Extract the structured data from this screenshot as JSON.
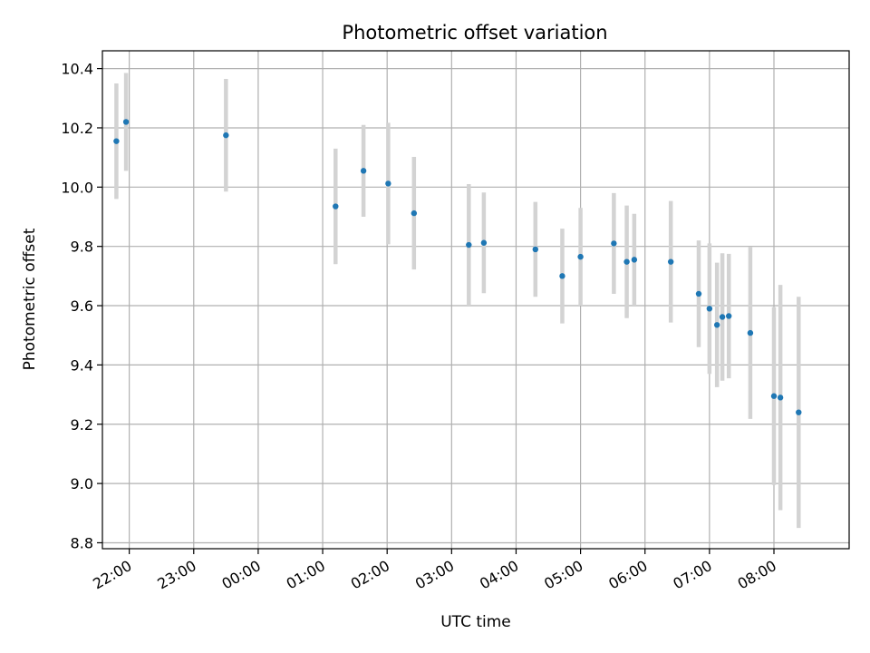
{
  "chart_data": {
    "type": "scatter",
    "title": "Photometric offset variation",
    "xlabel": "UTC time",
    "ylabel": "Photometric offset",
    "x_is_time": true,
    "xlim": [
      "21:35",
      "09:10"
    ],
    "ylim": [
      8.78,
      10.46
    ],
    "grid": true,
    "x_ticks": [
      "22:00",
      "23:00",
      "00:00",
      "01:00",
      "02:00",
      "03:00",
      "04:00",
      "05:00",
      "06:00",
      "07:00",
      "08:00"
    ],
    "y_ticks": [
      "8.8",
      "9.0",
      "9.2",
      "9.4",
      "9.6",
      "9.8",
      "10.0",
      "10.2",
      "10.4"
    ],
    "colors": {
      "point": "#1f77b4",
      "errorbar": "#d3d3d3",
      "grid": "#b0b0b0"
    },
    "points": [
      {
        "time": "21:48",
        "y": 10.155,
        "err": 0.195
      },
      {
        "time": "21:57",
        "y": 10.22,
        "err": 0.165
      },
      {
        "time": "23:30",
        "y": 10.175,
        "err": 0.19
      },
      {
        "time": "01:12",
        "y": 9.935,
        "err": 0.195
      },
      {
        "time": "01:38",
        "y": 10.055,
        "err": 0.155
      },
      {
        "time": "02:01",
        "y": 10.012,
        "err": 0.205
      },
      {
        "time": "02:25",
        "y": 9.912,
        "err": 0.19
      },
      {
        "time": "03:16",
        "y": 9.805,
        "err": 0.205
      },
      {
        "time": "03:30",
        "y": 9.812,
        "err": 0.17
      },
      {
        "time": "04:18",
        "y": 9.79,
        "err": 0.16
      },
      {
        "time": "04:43",
        "y": 9.7,
        "err": 0.16
      },
      {
        "time": "05:00",
        "y": 9.765,
        "err": 0.165
      },
      {
        "time": "05:31",
        "y": 9.81,
        "err": 0.17
      },
      {
        "time": "05:43",
        "y": 9.748,
        "err": 0.19
      },
      {
        "time": "05:50",
        "y": 9.755,
        "err": 0.155
      },
      {
        "time": "06:24",
        "y": 9.748,
        "err": 0.205
      },
      {
        "time": "06:50",
        "y": 9.64,
        "err": 0.18
      },
      {
        "time": "07:00",
        "y": 9.59,
        "err": 0.22
      },
      {
        "time": "07:07",
        "y": 9.535,
        "err": 0.21
      },
      {
        "time": "07:12",
        "y": 9.562,
        "err": 0.215
      },
      {
        "time": "07:18",
        "y": 9.565,
        "err": 0.21
      },
      {
        "time": "07:38",
        "y": 9.508,
        "err": 0.29
      },
      {
        "time": "08:00",
        "y": 9.295,
        "err": 0.3
      },
      {
        "time": "08:06",
        "y": 9.29,
        "err": 0.38
      },
      {
        "time": "08:23",
        "y": 9.24,
        "err": 0.39
      }
    ]
  }
}
